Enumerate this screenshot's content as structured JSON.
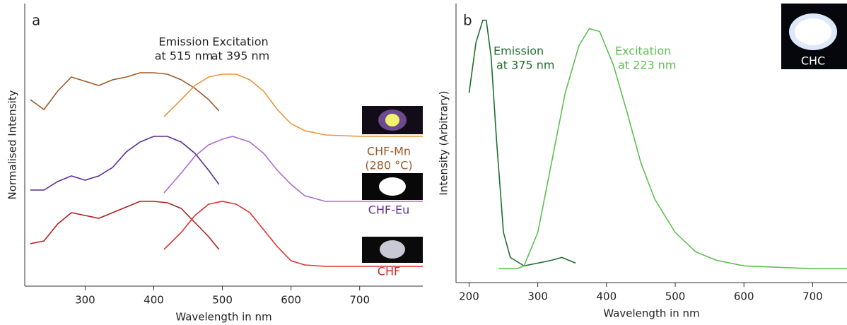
{
  "chart_data": [
    {
      "type": "line",
      "panel": "a",
      "x_label": "Wavelength in nm",
      "y_label": "Normalised Intensity",
      "xlim": [
        212,
        792
      ],
      "xticks": [
        300,
        400,
        500,
        600,
        700
      ],
      "ylim": [
        0,
        100
      ],
      "annotations": [
        {
          "text": [
            "Emission",
            "at 515 nm"
          ],
          "color": "#222222"
        },
        {
          "text": [
            "Excitation",
            "at 395 nm"
          ],
          "color": "#222222"
        }
      ],
      "sample_labels": [
        {
          "text": [
            "CHF-Mn",
            "(280 °C)"
          ],
          "color": "#9b5a2a"
        },
        {
          "text": [
            "CHF-Eu"
          ],
          "color": "#5b2d8e"
        },
        {
          "text": [
            "CHF"
          ],
          "color": "#c02828"
        }
      ],
      "series": [
        {
          "color": "#9b5a2a",
          "x": [
            220,
            240,
            260,
            280,
            300,
            320,
            340,
            360,
            380,
            400,
            420,
            440,
            460,
            480,
            495
          ],
          "values": [
            66,
            62.5,
            69,
            74,
            72.5,
            71,
            73,
            74,
            75.5,
            75.5,
            75,
            73,
            70,
            66,
            62
          ]
        },
        {
          "color": "#e8963a",
          "x": [
            415,
            440,
            460,
            480,
            500,
            520,
            540,
            560,
            580,
            600,
            620,
            650,
            700,
            792
          ],
          "values": [
            60,
            66,
            71,
            74,
            75,
            75,
            73,
            69,
            62.5,
            57.5,
            55,
            53.5,
            53,
            53
          ]
        },
        {
          "color": "#5b2d8e",
          "x": [
            220,
            240,
            260,
            280,
            300,
            320,
            340,
            360,
            380,
            400,
            420,
            440,
            460,
            480,
            495
          ],
          "values": [
            34,
            34,
            37,
            39,
            37.5,
            39,
            42,
            47.5,
            51,
            53,
            53,
            51,
            47,
            41,
            36
          ]
        },
        {
          "color": "#a86ed0",
          "x": [
            415,
            440,
            460,
            480,
            500,
            515,
            540,
            560,
            580,
            600,
            620,
            650,
            700,
            792
          ],
          "values": [
            33,
            40,
            46,
            50,
            52,
            53,
            51,
            47,
            41,
            36,
            32,
            30,
            30,
            30
          ]
        },
        {
          "color": "#b02020",
          "x": [
            220,
            240,
            260,
            280,
            300,
            320,
            340,
            360,
            380,
            400,
            420,
            440,
            460,
            480,
            495
          ],
          "values": [
            15,
            16,
            22,
            26,
            25,
            24,
            26,
            28,
            30,
            30,
            29.5,
            27.5,
            22.5,
            17.5,
            13
          ]
        },
        {
          "color": "#e03030",
          "x": [
            415,
            440,
            460,
            480,
            500,
            520,
            540,
            560,
            580,
            600,
            620,
            650,
            700,
            792
          ],
          "values": [
            13,
            19,
            25,
            29,
            30,
            29,
            26,
            20,
            14,
            9,
            7.5,
            7,
            7,
            7
          ]
        }
      ]
    },
    {
      "type": "line",
      "panel": "b",
      "x_label": "Wavelength in nm",
      "y_label": "Intensity (Arbitrary)",
      "xlim": [
        181,
        750
      ],
      "xticks": [
        200,
        300,
        400,
        500,
        600,
        700
      ],
      "ylim": [
        0,
        100
      ],
      "inset_label": "CHC",
      "annotations": [
        {
          "text": [
            "Emission",
            "at 375 nm"
          ],
          "color": "#1e6e30"
        },
        {
          "text": [
            "Excitation",
            "at 223 nm"
          ],
          "color": "#5cc050"
        }
      ],
      "series": [
        {
          "color": "#1e6e30",
          "x": [
            200,
            210,
            220,
            225,
            232,
            240,
            250,
            260,
            280,
            300,
            320,
            335,
            355
          ],
          "values": [
            68,
            86,
            94,
            94,
            81,
            51,
            18,
            9,
            6,
            7,
            8,
            9,
            7
          ]
        },
        {
          "color": "#5cc050",
          "x": [
            243,
            270,
            280,
            300,
            320,
            340,
            360,
            375,
            390,
            410,
            430,
            450,
            470,
            500,
            530,
            560,
            600,
            650,
            700,
            750
          ],
          "values": [
            5,
            5,
            6,
            18,
            43,
            68,
            85,
            91,
            90,
            78,
            61,
            43,
            30,
            18,
            11,
            8,
            6,
            5.5,
            5,
            5
          ]
        }
      ]
    }
  ]
}
